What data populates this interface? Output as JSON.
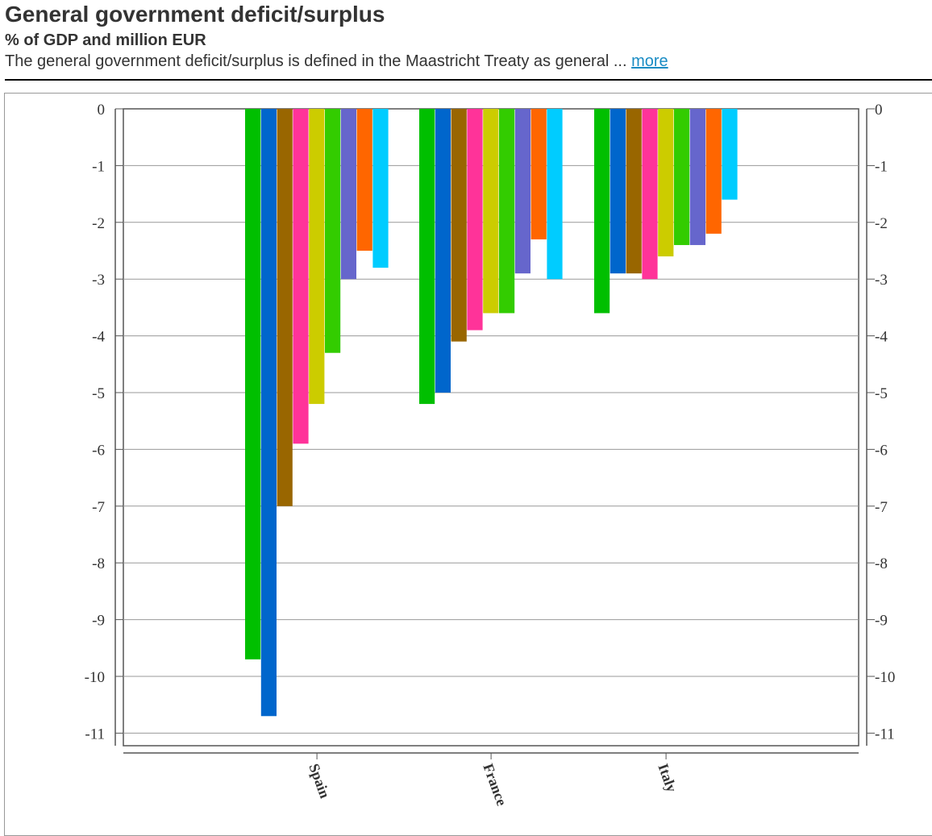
{
  "header": {
    "title": "General government deficit/surplus",
    "subtitle": "% of GDP and million EUR",
    "description": "The general government deficit/surplus is defined in the Maastricht Treaty as general ... ",
    "more_link": "more"
  },
  "chart_data": {
    "type": "bar",
    "categories": [
      "Spain",
      "France",
      "Italy"
    ],
    "ylim": [
      -11,
      0
    ],
    "yticks": [
      "0",
      "-1",
      "-2",
      "-3",
      "-4",
      "-5",
      "-6",
      "-7",
      "-8",
      "-9",
      "-10",
      "-11"
    ],
    "grid": true,
    "secondary_y_axis": true,
    "series": [
      {
        "color": "#00bf00",
        "values": [
          -9.7,
          -5.2,
          -3.6
        ]
      },
      {
        "color": "#0066cc",
        "values": [
          -10.7,
          -5.0,
          -2.9
        ]
      },
      {
        "color": "#996600",
        "values": [
          -7.0,
          -4.1,
          -2.9
        ]
      },
      {
        "color": "#ff3399",
        "values": [
          -5.9,
          -3.9,
          -3.0
        ]
      },
      {
        "color": "#cccc00",
        "values": [
          -5.2,
          -3.6,
          -2.6
        ]
      },
      {
        "color": "#33cc00",
        "values": [
          -4.3,
          -3.6,
          -2.4
        ]
      },
      {
        "color": "#6666cc",
        "values": [
          -3.0,
          -2.9,
          -2.4
        ]
      },
      {
        "color": "#ff6600",
        "values": [
          -2.5,
          -2.3,
          -2.2
        ]
      },
      {
        "color": "#00ccff",
        "values": [
          -2.8,
          -3.0,
          -1.6
        ]
      }
    ]
  }
}
